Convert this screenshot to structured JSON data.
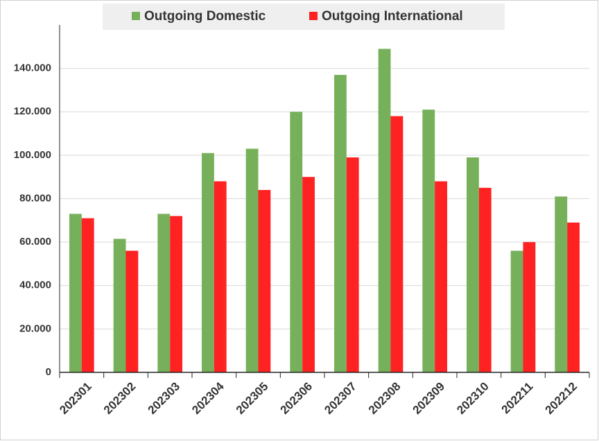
{
  "chart_data": {
    "type": "bar",
    "categories": [
      "202301",
      "202302",
      "202303",
      "202304",
      "202305",
      "202306",
      "202307",
      "202308",
      "202309",
      "202310",
      "202211",
      "202212"
    ],
    "series": [
      {
        "name": "Outgoing Domestic",
        "color": "#77b05a",
        "values": [
          73000,
          61500,
          73000,
          101000,
          103000,
          120000,
          137000,
          149000,
          121000,
          99000,
          56000,
          81000
        ]
      },
      {
        "name": "Outgoing International",
        "color": "#ff2222",
        "values": [
          71000,
          56000,
          72000,
          88000,
          84000,
          90000,
          99000,
          118000,
          88000,
          85000,
          60000,
          69000
        ]
      }
    ],
    "ylim": [
      0,
      160000
    ],
    "yticks": [
      0,
      {
        "value": 20000,
        "label": "20.000"
      },
      {
        "value": 40000,
        "label": "40.000"
      },
      {
        "value": 60000,
        "label": "60.000"
      },
      {
        "value": 80000,
        "label": "80.000"
      },
      {
        "value": 100000,
        "label": "100.000"
      },
      {
        "value": 120000,
        "label": "120.000"
      },
      {
        "value": 140000,
        "label": "140.000"
      }
    ],
    "grid": true,
    "legend": "top"
  }
}
